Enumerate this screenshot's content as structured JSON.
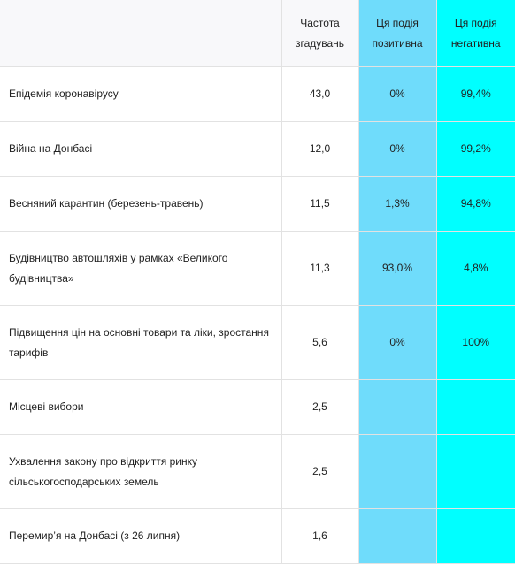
{
  "table": {
    "headers": {
      "event": "",
      "frequency": "Частота\nзгадувань",
      "positive": "Ця подія\nпозитивна",
      "negative": "Ця подія\nнегативна"
    },
    "rows": [
      {
        "event": "Епідемія коронавірусу",
        "frequency": "43,0",
        "positive": "0%",
        "negative": "99,4%"
      },
      {
        "event": "Війна на Донбасі",
        "frequency": "12,0",
        "positive": "0%",
        "negative": "99,2%"
      },
      {
        "event": "Весняний карантин (березень-травень)",
        "frequency": "11,5",
        "positive": "1,3%",
        "negative": "94,8%"
      },
      {
        "event": "Будівництво автошляхів у рамках «Великого будівництва»",
        "frequency": "11,3",
        "positive": "93,0%",
        "negative": "4,8%"
      },
      {
        "event": "Підвищення цін на основні товари та ліки, зростання тарифів",
        "frequency": "5,6",
        "positive": "0%",
        "negative": "100%"
      },
      {
        "event": "Місцеві вибори",
        "frequency": "2,5",
        "positive": "",
        "negative": ""
      },
      {
        "event": "Ухвалення закону про відкриття ринку сільськогосподарських земель",
        "frequency": "2,5",
        "positive": "",
        "negative": ""
      },
      {
        "event": "Перемир’я на Донбасі (з 26 липня)",
        "frequency": "1,6",
        "positive": "",
        "negative": ""
      }
    ]
  },
  "colors": {
    "positive_column": "#6fdcfb",
    "negative_column": "#00ffff",
    "header_background": "#f8f8fa"
  }
}
